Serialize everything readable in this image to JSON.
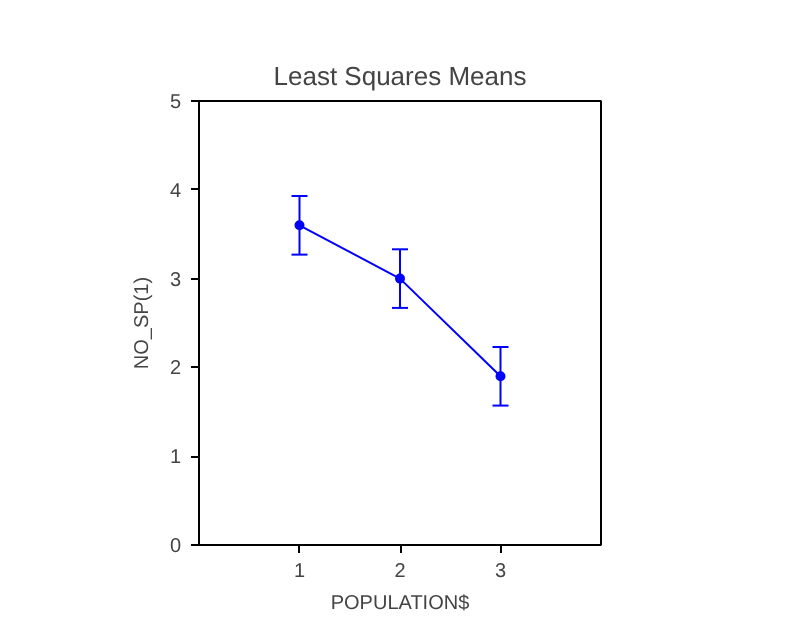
{
  "chart_data": {
    "type": "line",
    "title": "Least Squares Means",
    "xlabel": "POPULATION$",
    "ylabel": "NO_SP(1)",
    "x": [
      1,
      2,
      3
    ],
    "series": [
      {
        "color": "#0000ff",
        "values": [
          3.6,
          3.0,
          1.9
        ],
        "errors": [
          0.33,
          0.33,
          0.33
        ]
      }
    ],
    "xlim": [
      0,
      4
    ],
    "xticks": [
      1,
      2,
      3
    ],
    "ylim": [
      0,
      5
    ],
    "yticks": [
      0,
      1,
      2,
      3,
      4,
      5
    ],
    "grid": false,
    "marker": "circle",
    "line_style": "solid"
  }
}
